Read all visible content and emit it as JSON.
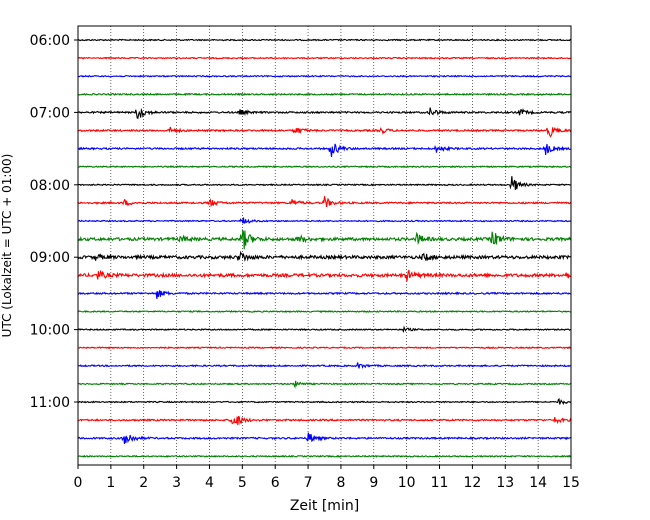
{
  "chart_data": {
    "type": "line",
    "title": "",
    "xlabel": "Zeit  [min]",
    "ylabel": "UTC (Lokalzeit = UTC + 01:00)",
    "xlim": [
      0,
      15
    ],
    "x_ticks": [
      "0",
      "1",
      "2",
      "3",
      "4",
      "5",
      "6",
      "7",
      "8",
      "9",
      "10",
      "11",
      "12",
      "13",
      "14",
      "15"
    ],
    "y_tick_labels": [
      "06:00",
      "07:00",
      "08:00",
      "09:00",
      "10:00",
      "11:00"
    ],
    "grid": "vertical dotted at each minute",
    "trace_interval_min": 15,
    "start_time": "06:00",
    "colors": [
      "#000000",
      "#ff0000",
      "#0000ff",
      "#008000"
    ],
    "traces": [
      {
        "time": "06:00",
        "color": "#000000",
        "noise": 0.6,
        "events": []
      },
      {
        "time": "06:15",
        "color": "#ff0000",
        "noise": 0.6,
        "events": []
      },
      {
        "time": "06:30",
        "color": "#0000ff",
        "noise": 0.6,
        "events": []
      },
      {
        "time": "06:45",
        "color": "#008000",
        "noise": 0.7,
        "events": []
      },
      {
        "time": "07:00",
        "color": "#000000",
        "noise": 0.8,
        "events": [
          [
            1.8,
            8
          ],
          [
            4.9,
            3
          ],
          [
            10.7,
            5
          ],
          [
            13.4,
            4
          ]
        ]
      },
      {
        "time": "07:15",
        "color": "#ff0000",
        "noise": 0.8,
        "events": [
          [
            2.8,
            3
          ],
          [
            6.6,
            4
          ],
          [
            9.2,
            3
          ],
          [
            14.3,
            8
          ]
        ]
      },
      {
        "time": "07:30",
        "color": "#0000ff",
        "noise": 0.8,
        "events": [
          [
            7.7,
            9
          ],
          [
            10.9,
            4
          ],
          [
            14.2,
            7
          ]
        ]
      },
      {
        "time": "07:45",
        "color": "#008000",
        "noise": 0.6,
        "events": []
      },
      {
        "time": "08:00",
        "color": "#000000",
        "noise": 0.6,
        "events": [
          [
            13.2,
            9
          ]
        ]
      },
      {
        "time": "08:15",
        "color": "#ff0000",
        "noise": 0.8,
        "events": [
          [
            1.4,
            3
          ],
          [
            4.0,
            4
          ],
          [
            6.5,
            4
          ],
          [
            7.5,
            6
          ]
        ]
      },
      {
        "time": "08:30",
        "color": "#0000ff",
        "noise": 0.6,
        "events": [
          [
            5.0,
            4
          ]
        ]
      },
      {
        "time": "08:45",
        "color": "#008000",
        "noise": 1.4,
        "events": [
          [
            3.1,
            3
          ],
          [
            5.0,
            12
          ],
          [
            6.7,
            4
          ],
          [
            10.3,
            5
          ],
          [
            12.6,
            9
          ]
        ]
      },
      {
        "time": "09:00",
        "color": "#000000",
        "noise": 1.5,
        "events": [
          [
            0.5,
            3
          ],
          [
            4.9,
            6
          ],
          [
            10.5,
            4
          ]
        ]
      },
      {
        "time": "09:15",
        "color": "#ff0000",
        "noise": 1.5,
        "events": [
          [
            0.6,
            4
          ],
          [
            10.0,
            5
          ],
          [
            14.8,
            3
          ]
        ]
      },
      {
        "time": "09:30",
        "color": "#0000ff",
        "noise": 0.8,
        "events": [
          [
            2.4,
            5
          ]
        ]
      },
      {
        "time": "09:45",
        "color": "#008000",
        "noise": 0.6,
        "events": []
      },
      {
        "time": "10:00",
        "color": "#000000",
        "noise": 0.6,
        "events": [
          [
            9.9,
            2
          ]
        ]
      },
      {
        "time": "10:15",
        "color": "#ff0000",
        "noise": 0.6,
        "events": []
      },
      {
        "time": "10:30",
        "color": "#0000ff",
        "noise": 0.7,
        "events": [
          [
            8.5,
            3
          ]
        ]
      },
      {
        "time": "10:45",
        "color": "#008000",
        "noise": 0.6,
        "events": [
          [
            6.6,
            3
          ]
        ]
      },
      {
        "time": "11:00",
        "color": "#000000",
        "noise": 0.6,
        "events": [
          [
            14.6,
            3
          ]
        ]
      },
      {
        "time": "11:15",
        "color": "#ff0000",
        "noise": 0.8,
        "events": [
          [
            4.7,
            11
          ],
          [
            14.5,
            3
          ]
        ]
      },
      {
        "time": "11:30",
        "color": "#0000ff",
        "noise": 0.8,
        "events": [
          [
            1.4,
            11
          ],
          [
            7.0,
            6
          ]
        ]
      },
      {
        "time": "11:45",
        "color": "#008000",
        "noise": 0.6,
        "events": []
      }
    ]
  }
}
